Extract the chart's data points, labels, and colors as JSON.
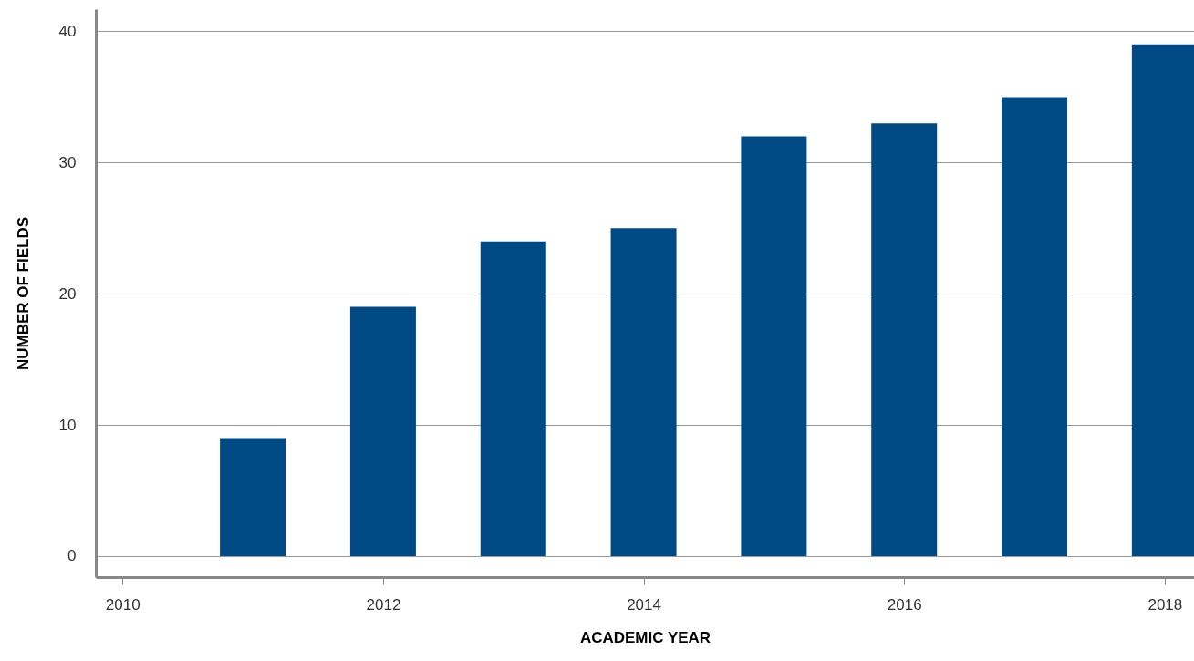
{
  "chart_data": {
    "type": "bar",
    "xlabel": "ACADEMIC YEAR",
    "ylabel": "NUMBER OF FIELDS",
    "x": [
      2011,
      2012,
      2013,
      2014,
      2015,
      2016,
      2017,
      2018
    ],
    "values": [
      9,
      19,
      24,
      25,
      32,
      33,
      35,
      39
    ],
    "color": "#004b85",
    "xlim": [
      2009.83,
      2018.19
    ],
    "xticks": [
      2010,
      2012,
      2014,
      2016,
      2018
    ],
    "ylim": [
      -1.6,
      41.7
    ],
    "yticks": [
      0,
      10,
      20,
      30,
      40
    ],
    "grid": "y"
  }
}
